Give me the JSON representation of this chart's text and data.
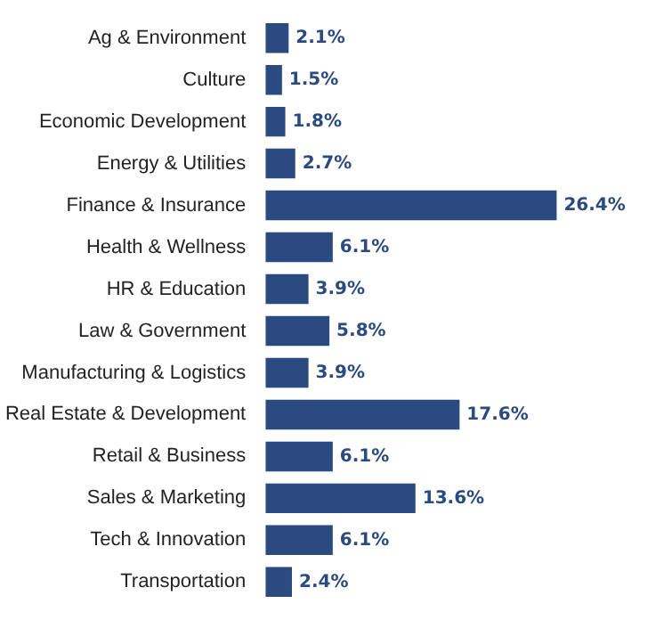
{
  "chart_data": {
    "type": "bar",
    "orientation": "horizontal",
    "categories": [
      "Ag & Environment",
      "Culture",
      "Economic Development",
      "Energy & Utilities",
      "Finance & Insurance",
      "Health & Wellness",
      "HR & Education",
      "Law & Government",
      "Manufacturing & Logistics",
      "Real Estate & Development",
      "Retail & Business",
      "Sales & Marketing",
      "Tech & Innovation",
      "Transportation"
    ],
    "values": [
      2.1,
      1.5,
      1.8,
      2.7,
      26.4,
      6.1,
      3.9,
      5.8,
      3.9,
      17.6,
      6.1,
      13.6,
      6.1,
      2.4
    ],
    "value_labels": [
      "2.1%",
      "1.5%",
      "1.8%",
      "2.7%",
      "26.4%",
      "6.1%",
      "3.9%",
      "5.8%",
      "3.9%",
      "17.6%",
      "6.1%",
      "13.6%",
      "6.1%",
      "2.4%"
    ],
    "color": "#2b4a80",
    "tick_labels": "y"
  }
}
